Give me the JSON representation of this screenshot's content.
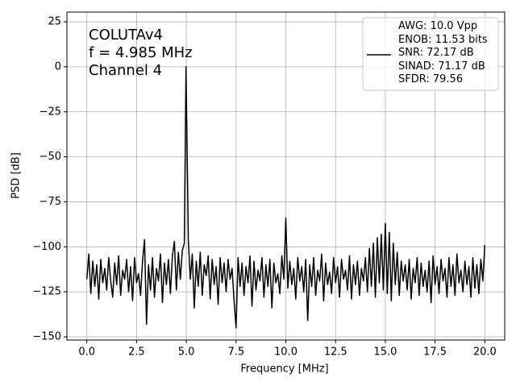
{
  "chart_data": {
    "type": "line",
    "annotations": [
      "COLUTAv4",
      "f = 4.985 MHz",
      "Channel 4"
    ],
    "x_label": "Frequency [MHz]",
    "y_label": "PSD [dB]",
    "xlim": [
      -1,
      21
    ],
    "ylim": [
      -151.8,
      30.4
    ],
    "xticks": [
      {
        "value": 0,
        "label": "0.0"
      },
      2.5,
      {
        "value": 5,
        "label": "5.0"
      },
      7.5,
      {
        "value": 10,
        "label": "10.0"
      },
      12.5,
      {
        "value": 15,
        "label": "15.0"
      },
      17.5,
      {
        "value": 20,
        "label": "20.0"
      }
    ],
    "yticks": [
      25,
      0,
      {
        "value": -25,
        "label": "−25"
      },
      {
        "value": -50,
        "label": "−50"
      },
      {
        "value": -75,
        "label": "−75"
      },
      {
        "value": -100,
        "label": "−100"
      },
      {
        "value": -125,
        "label": "−125"
      },
      {
        "value": -150,
        "label": "−150"
      }
    ],
    "grid": true,
    "legend": "upper right",
    "x": [
      0,
      0.1,
      0.2,
      0.3,
      0.4,
      0.5,
      0.6,
      0.7,
      0.8,
      0.9,
      1,
      1.1,
      1.2,
      1.3,
      1.4,
      1.5,
      1.6,
      1.7,
      1.8,
      1.9,
      2,
      2.1,
      2.2,
      2.3,
      2.4,
      2.5,
      2.6,
      2.7,
      2.8,
      2.9,
      3,
      3.1,
      3.2,
      3.3,
      3.4,
      3.5,
      3.6,
      3.7,
      3.8,
      3.9,
      4,
      4.1,
      4.2,
      4.3,
      4.4,
      4.5,
      4.6,
      4.7,
      4.8,
      4.9,
      4.985,
      5.1,
      5.2,
      5.3,
      5.4,
      5.5,
      5.6,
      5.7,
      5.8,
      5.9,
      6,
      6.1,
      6.2,
      6.3,
      6.4,
      6.5,
      6.6,
      6.7,
      6.8,
      6.9,
      7,
      7.1,
      7.2,
      7.3,
      7.4,
      7.5,
      7.6,
      7.7,
      7.8,
      7.9,
      8,
      8.1,
      8.2,
      8.3,
      8.4,
      8.5,
      8.6,
      8.7,
      8.8,
      8.9,
      9,
      9.1,
      9.2,
      9.3,
      9.4,
      9.5,
      9.6,
      9.7,
      9.8,
      9.9,
      10,
      10.1,
      10.2,
      10.3,
      10.4,
      10.5,
      10.6,
      10.7,
      10.8,
      10.9,
      11,
      11.1,
      11.2,
      11.3,
      11.4,
      11.5,
      11.6,
      11.7,
      11.8,
      11.9,
      12,
      12.1,
      12.2,
      12.3,
      12.4,
      12.5,
      12.6,
      12.7,
      12.8,
      12.9,
      13,
      13.1,
      13.2,
      13.3,
      13.4,
      13.5,
      13.6,
      13.7,
      13.8,
      13.9,
      14,
      14.1,
      14.2,
      14.3,
      14.4,
      14.5,
      14.6,
      14.7,
      14.8,
      14.9,
      15,
      15.1,
      15.2,
      15.3,
      15.4,
      15.5,
      15.6,
      15.7,
      15.8,
      15.9,
      16,
      16.1,
      16.2,
      16.3,
      16.4,
      16.5,
      16.6,
      16.7,
      16.8,
      16.9,
      17,
      17.1,
      17.2,
      17.3,
      17.4,
      17.5,
      17.6,
      17.7,
      17.8,
      17.9,
      18,
      18.1,
      18.2,
      18.3,
      18.4,
      18.5,
      18.6,
      18.7,
      18.8,
      18.9,
      19,
      19.1,
      19.2,
      19.3,
      19.4,
      19.5,
      19.6,
      19.7,
      19.8,
      19.9,
      20
    ],
    "series": [
      {
        "name": "AWG: 10.0 Vpp\nENOB: 11.53 bits\nSNR: 72.17 dB\nSINAD: 71.17 dB\nSFDR: 79.56",
        "color": "#000000",
        "values": [
          -118,
          -104,
          -126,
          -108,
          -122,
          -110,
          -129,
          -107,
          -120,
          -112,
          -124,
          -106,
          -119,
          -128,
          -109,
          -121,
          -105,
          -127,
          -113,
          -118,
          -107,
          -125,
          -111,
          -130,
          -106,
          -120,
          -115,
          -127,
          -108,
          -96,
          -143,
          -110,
          -124,
          -106,
          -128,
          -112,
          -119,
          -104,
          -131,
          -109,
          -121,
          -107,
          -126,
          -105,
          -97,
          -124,
          -103,
          -118,
          -102,
          -98,
          0,
          -96,
          -118,
          -104,
          -134,
          -108,
          -122,
          -103,
          -127,
          -110,
          -116,
          -105,
          -129,
          -107,
          -121,
          -111,
          -132,
          -106,
          -120,
          -109,
          -125,
          -107,
          -118,
          -112,
          -130,
          -145,
          -106,
          -122,
          -109,
          -127,
          -111,
          -120,
          -105,
          -133,
          -108,
          -124,
          -113,
          -119,
          -106,
          -128,
          -110,
          -122,
          -107,
          -134,
          -109,
          -120,
          -115,
          -126,
          -105,
          -118,
          -84,
          -123,
          -108,
          -121,
          -112,
          -129,
          -106,
          -119,
          -111,
          -125,
          -107,
          -141,
          -110,
          -122,
          -106,
          -127,
          -113,
          -119,
          -104,
          -130,
          -109,
          -121,
          -114,
          -126,
          -106,
          -120,
          -111,
          -128,
          -107,
          -118,
          -113,
          -124,
          -105,
          -129,
          -110,
          -121,
          -108,
          -127,
          -112,
          -119,
          -106,
          -125,
          -101,
          -122,
          -98,
          -128,
          -95,
          -120,
          -93,
          -124,
          -87,
          -126,
          -92,
          -130,
          -98,
          -121,
          -103,
          -127,
          -108,
          -119,
          -110,
          -124,
          -107,
          -129,
          -112,
          -120,
          -106,
          -127,
          -109,
          -122,
          -113,
          -125,
          -108,
          -131,
          -105,
          -121,
          -111,
          -126,
          -107,
          -119,
          -112,
          -128,
          -106,
          -122,
          -110,
          -127,
          -104,
          -120,
          -113,
          -125,
          -108,
          -121,
          -111,
          -128,
          -106,
          -123,
          -110,
          -126,
          -107,
          -119,
          -99
        ]
      }
    ]
  }
}
